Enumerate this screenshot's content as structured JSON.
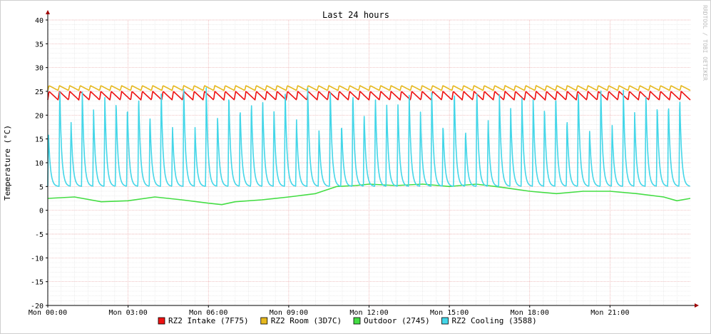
{
  "chart_data": {
    "type": "line",
    "title": "Last 24 hours",
    "ylabel": "Temperature (°C)",
    "watermark": "RRDTOOL / TOBI OETIKER",
    "ylim": [
      -20,
      40
    ],
    "yticks": [
      "40",
      "35",
      "30",
      "25",
      "20",
      "15",
      "10",
      "5",
      "0",
      "-5",
      "-10",
      "-15",
      "-20"
    ],
    "xticks": [
      "Mon 00:00",
      "Mon 03:00",
      "Mon 06:00",
      "Mon 09:00",
      "Mon 12:00",
      "Mon 15:00",
      "Mon 18:00",
      "Mon 21:00"
    ],
    "x_hours": [
      0,
      3,
      6,
      9,
      12,
      15,
      18,
      21
    ],
    "x_range_hours": [
      0,
      24
    ],
    "grid": true,
    "legend_position": "bottom",
    "series": [
      {
        "name": "RZ2 Intake (7F75)",
        "color": "#ee1111",
        "pattern": "sawtooth",
        "min": 23.2,
        "max": 25.0,
        "cycles": 62
      },
      {
        "name": "RZ2 Room (3D7C)",
        "color": "#e6b81e",
        "pattern": "sawtooth",
        "min": 25.2,
        "max": 26.2,
        "cycles": 62
      },
      {
        "name": "Outdoor (2745)",
        "color": "#44dd44",
        "pattern": "smooth",
        "points": [
          {
            "h": 0.0,
            "v": 2.5
          },
          {
            "h": 1.0,
            "v": 2.8
          },
          {
            "h": 2.0,
            "v": 1.8
          },
          {
            "h": 3.0,
            "v": 2.0
          },
          {
            "h": 4.0,
            "v": 2.8
          },
          {
            "h": 5.0,
            "v": 2.2
          },
          {
            "h": 6.0,
            "v": 1.5
          },
          {
            "h": 6.5,
            "v": 1.2
          },
          {
            "h": 7.0,
            "v": 1.8
          },
          {
            "h": 8.0,
            "v": 2.2
          },
          {
            "h": 9.0,
            "v": 2.8
          },
          {
            "h": 10.0,
            "v": 3.5
          },
          {
            "h": 10.8,
            "v": 5.0
          },
          {
            "h": 11.5,
            "v": 5.2
          },
          {
            "h": 12.0,
            "v": 5.5
          },
          {
            "h": 13.0,
            "v": 5.2
          },
          {
            "h": 14.0,
            "v": 5.5
          },
          {
            "h": 15.0,
            "v": 5.0
          },
          {
            "h": 16.0,
            "v": 5.5
          },
          {
            "h": 17.0,
            "v": 4.8
          },
          {
            "h": 18.0,
            "v": 4.0
          },
          {
            "h": 19.0,
            "v": 3.5
          },
          {
            "h": 20.0,
            "v": 4.0
          },
          {
            "h": 21.0,
            "v": 4.0
          },
          {
            "h": 22.0,
            "v": 3.5
          },
          {
            "h": 23.0,
            "v": 2.8
          },
          {
            "h": 23.5,
            "v": 2.0
          },
          {
            "h": 24.0,
            "v": 2.5
          }
        ]
      },
      {
        "name": "RZ2 Cooling (3588)",
        "color": "#44d6e8",
        "pattern": "spikes",
        "min": 5.0,
        "max": 26.0,
        "cycles": 57
      }
    ]
  }
}
